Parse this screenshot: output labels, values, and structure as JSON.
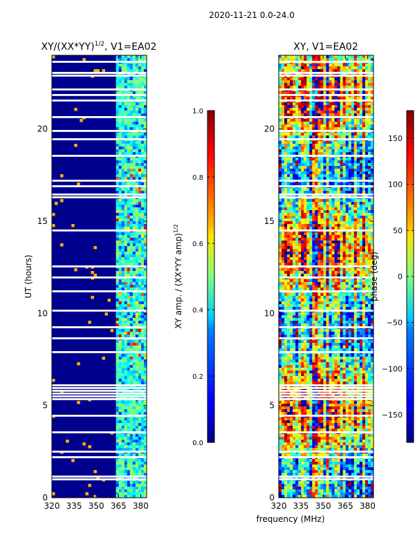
{
  "suptitle": "2020-11-21 0.0-24.0",
  "chart_data": [
    {
      "type": "heatmap",
      "title": "XY/(XX*YY)^1/2, V1=EA02",
      "title_main": "XY/(XX*YY)",
      "title_exp": "1/2",
      "title_tail": ", V1=EA02",
      "xlabel": "",
      "ylabel": "UT (hours)",
      "xlim": [
        320,
        384
      ],
      "ylim": [
        0,
        24
      ],
      "xticks": [
        320,
        335,
        350,
        365,
        380
      ],
      "yticks": [
        0,
        5,
        10,
        15,
        20
      ],
      "colorbar": {
        "label": "XY amp. / (XX*YY amp)^1/2",
        "label_main": "XY amp. / (XX*YY amp)",
        "label_exp": "1/2",
        "range": [
          0.0,
          1.0
        ],
        "ticks": [
          "0.0",
          "0.2",
          "0.4",
          "0.6",
          "0.8",
          "1.0"
        ],
        "tick_values": [
          0.0,
          0.2,
          0.4,
          0.6,
          0.8,
          1.0
        ]
      }
    },
    {
      "type": "heatmap",
      "title": "XY, V1=EA02",
      "xlabel": "frequency (MHz)",
      "ylabel": "",
      "xlim": [
        320,
        384
      ],
      "ylim": [
        0,
        24
      ],
      "xticks": [
        320,
        335,
        350,
        365,
        380
      ],
      "yticks": [
        0,
        5,
        10,
        15,
        20
      ],
      "colorbar": {
        "label": "phase (deg)",
        "range": [
          -180,
          180
        ],
        "ticks": [
          "150",
          "100",
          "50",
          "0",
          "−50",
          "−100",
          "−150"
        ],
        "tick_values": [
          150,
          100,
          50,
          0,
          -50,
          -100,
          -150
        ]
      }
    }
  ],
  "colors": {
    "jet_low": "#00007f",
    "jet_mid": "#7fff7f",
    "jet_high": "#7f0000",
    "gap": "#ffffff"
  }
}
